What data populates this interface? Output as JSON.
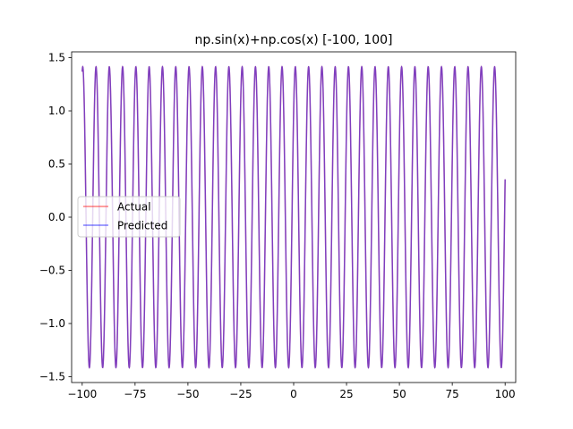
{
  "chart_data": {
    "type": "line",
    "title": "np.sin(x)+np.cos(x) [-100, 100]",
    "xlabel": "",
    "ylabel": "",
    "xlim": [
      -105,
      105
    ],
    "ylim": [
      -1.555,
      1.555
    ],
    "x_ticks": [
      -100,
      -75,
      -50,
      -25,
      0,
      25,
      50,
      75,
      100
    ],
    "x_tick_labels": [
      "−100",
      "−75",
      "−50",
      "−25",
      "0",
      "25",
      "50",
      "75",
      "100"
    ],
    "y_ticks": [
      -1.5,
      -1.0,
      -0.5,
      0.0,
      0.5,
      1.0,
      1.5
    ],
    "y_tick_labels": [
      "−1.5",
      "−1.0",
      "−0.5",
      "0.0",
      "0.5",
      "1.0",
      "1.5"
    ],
    "grid": false,
    "legend_position": "center-left",
    "series": [
      {
        "name": "Actual",
        "color": "#ff0000",
        "opacity": 0.5,
        "function": "sin(x)+cos(x)",
        "x_range": [
          -100,
          100
        ],
        "x": [
          -100,
          -75,
          -50,
          -25,
          0,
          25,
          50,
          75,
          100
        ],
        "y": [
          1.36,
          0.46,
          1.03,
          1.12,
          1.0,
          0.86,
          0.7,
          -0.47,
          0.35
        ]
      },
      {
        "name": "Predicted",
        "color": "#0000ff",
        "opacity": 0.5,
        "function": "sin(x)+cos(x)",
        "x_range": [
          -100,
          100
        ],
        "x": [
          -100,
          -75,
          -50,
          -25,
          0,
          25,
          50,
          75,
          100
        ],
        "y": [
          1.36,
          0.46,
          1.03,
          1.12,
          1.0,
          0.86,
          0.7,
          -0.47,
          0.35
        ]
      }
    ]
  }
}
